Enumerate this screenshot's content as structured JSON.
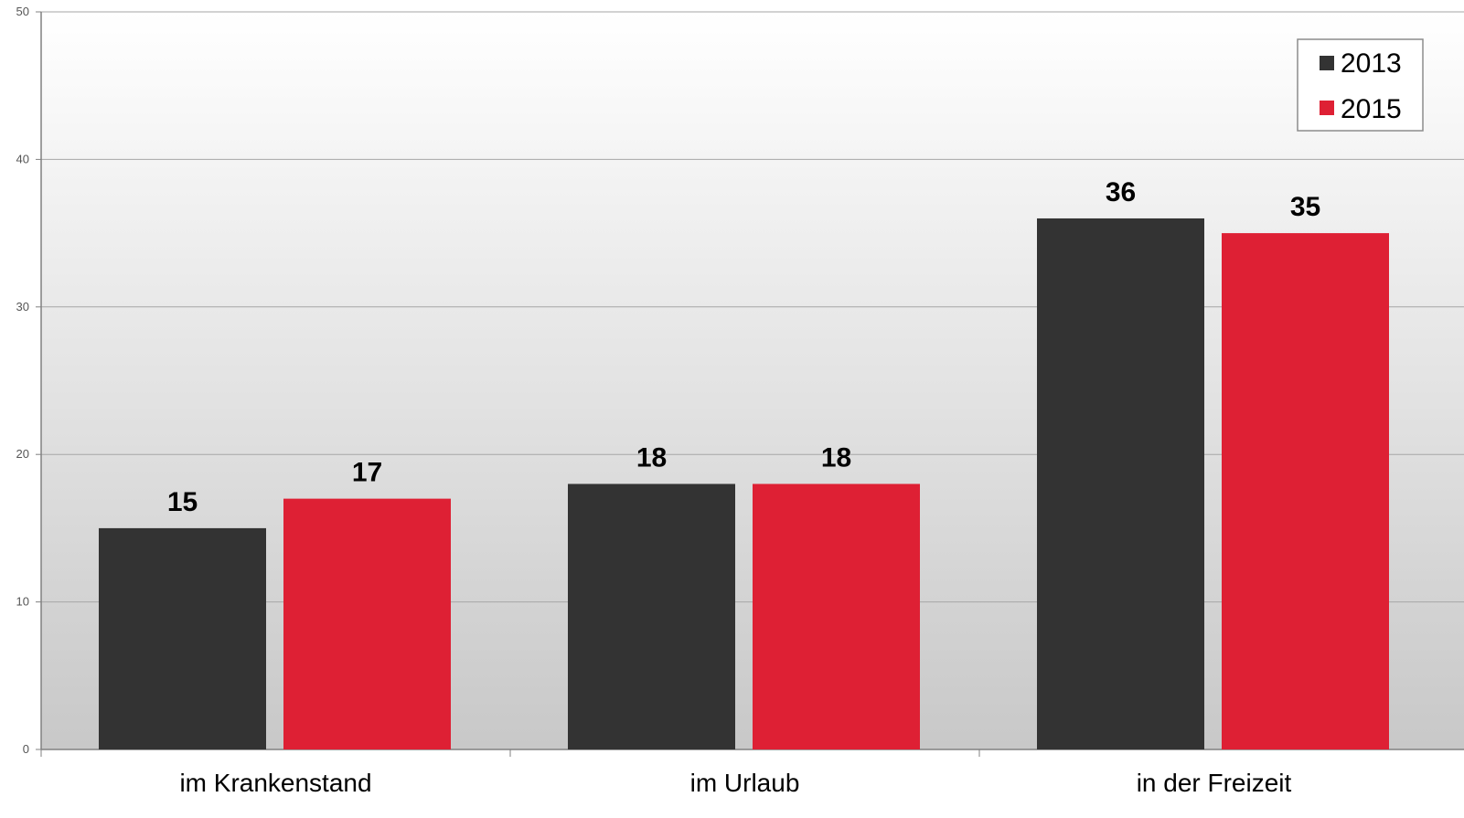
{
  "chart_data": {
    "type": "bar",
    "categories": [
      "im Krankenstand",
      "im Urlaub",
      "in der Freizeit"
    ],
    "series": [
      {
        "name": "2013",
        "values": [
          15,
          18,
          36
        ],
        "color": "#333333"
      },
      {
        "name": "2015",
        "values": [
          17,
          18,
          35
        ],
        "color": "#DE2034"
      }
    ],
    "title": "",
    "xlabel": "",
    "ylabel": "",
    "ylim": [
      0,
      50
    ],
    "yticks": [
      0,
      10,
      20,
      30,
      40,
      50
    ],
    "grid": true,
    "legend": {
      "position": "top-right",
      "entries": [
        "2013",
        "2015"
      ]
    },
    "data_labels": true
  }
}
